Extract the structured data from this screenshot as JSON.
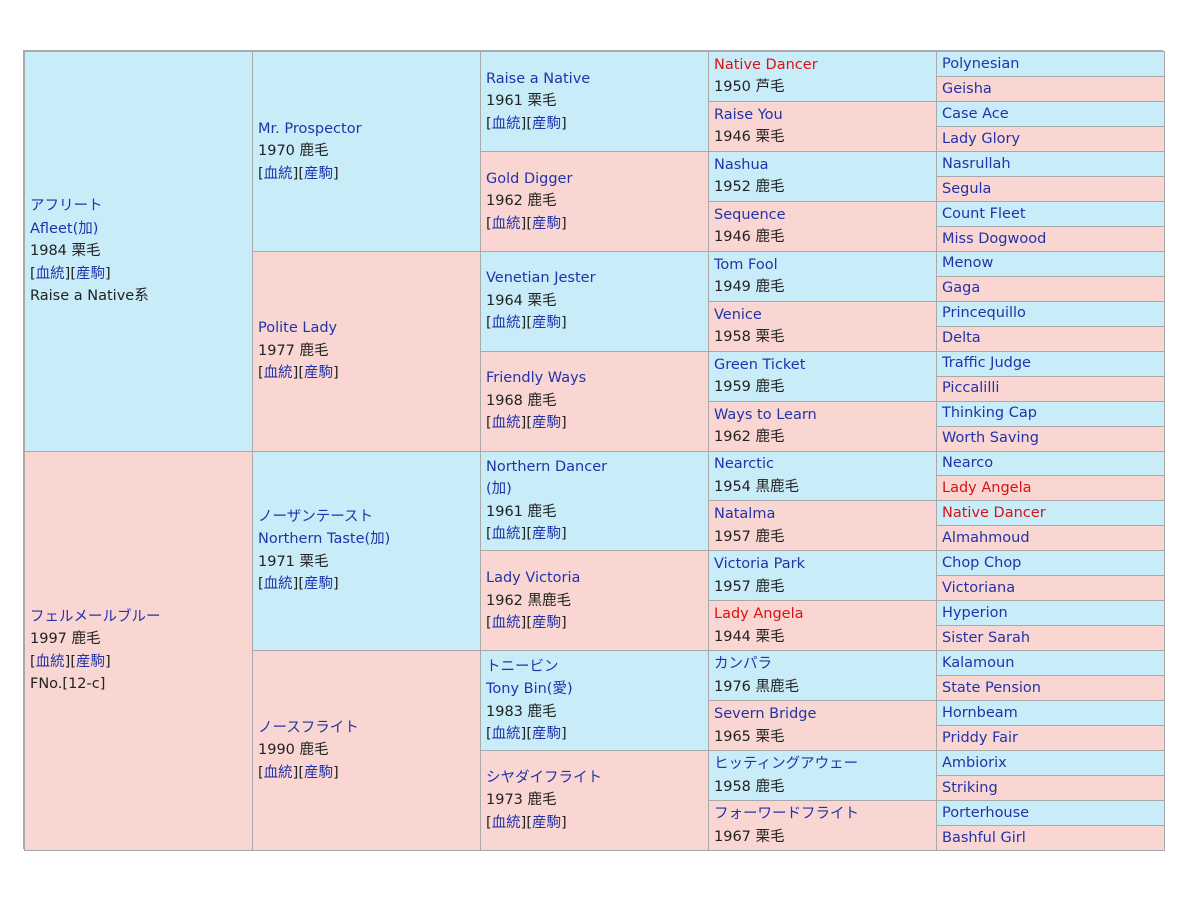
{
  "colors": {
    "male_bg": "#c9ecf9",
    "female_bg": "#f9d6d2",
    "link": "#2233aa",
    "highlight": "#dd1111"
  },
  "link_labels": {
    "pedigree": "血統",
    "offspring": "産駒"
  },
  "columns": [
    [
      {
        "sex": "m",
        "lines": [
          "アフリート",
          "Afleet(加)"
        ],
        "info": "1984 栗毛",
        "links": true,
        "extra": "Raise a Native系"
      },
      {
        "sex": "f",
        "lines": [
          "フェルメールブルー"
        ],
        "info": "1997 鹿毛",
        "links": true,
        "extra": "FNo.[12-c]"
      }
    ],
    [
      {
        "sex": "m",
        "lines": [
          "Mr. Prospector"
        ],
        "info": "1970 鹿毛",
        "links": true
      },
      {
        "sex": "f",
        "lines": [
          "Polite Lady"
        ],
        "info": "1977 鹿毛",
        "links": true
      },
      {
        "sex": "m",
        "lines": [
          "ノーザンテースト",
          "Northern Taste(加)"
        ],
        "info": "1971 栗毛",
        "links": true
      },
      {
        "sex": "f",
        "lines": [
          "ノースフライト"
        ],
        "info": "1990 鹿毛",
        "links": true
      }
    ],
    [
      {
        "sex": "m",
        "lines": [
          "Raise a Native"
        ],
        "info": "1961 栗毛",
        "links": true
      },
      {
        "sex": "f",
        "lines": [
          "Gold Digger"
        ],
        "info": "1962 鹿毛",
        "links": true
      },
      {
        "sex": "m",
        "lines": [
          "Venetian Jester"
        ],
        "info": "1964 栗毛",
        "links": true
      },
      {
        "sex": "f",
        "lines": [
          "Friendly Ways"
        ],
        "info": "1968 鹿毛",
        "links": true
      },
      {
        "sex": "m",
        "lines": [
          "Northern Dancer",
          "(加)"
        ],
        "info": "1961 鹿毛",
        "links": true
      },
      {
        "sex": "f",
        "lines": [
          "Lady Victoria"
        ],
        "info": "1962 黒鹿毛",
        "links": true
      },
      {
        "sex": "m",
        "lines": [
          "トニービン",
          "Tony Bin(愛)"
        ],
        "info": "1983 鹿毛",
        "links": true
      },
      {
        "sex": "f",
        "lines": [
          "シヤダイフライト"
        ],
        "info": "1973 鹿毛",
        "links": true
      }
    ],
    [
      {
        "sex": "m",
        "lines": [
          "Native Dancer"
        ],
        "info": "1950 芦毛",
        "hi": true
      },
      {
        "sex": "f",
        "lines": [
          "Raise You"
        ],
        "info": "1946 栗毛"
      },
      {
        "sex": "m",
        "lines": [
          "Nashua"
        ],
        "info": "1952 鹿毛"
      },
      {
        "sex": "f",
        "lines": [
          "Sequence"
        ],
        "info": "1946 鹿毛"
      },
      {
        "sex": "m",
        "lines": [
          "Tom Fool"
        ],
        "info": "1949 鹿毛"
      },
      {
        "sex": "f",
        "lines": [
          "Venice"
        ],
        "info": "1958 栗毛"
      },
      {
        "sex": "m",
        "lines": [
          "Green Ticket"
        ],
        "info": "1959 鹿毛"
      },
      {
        "sex": "f",
        "lines": [
          "Ways to Learn"
        ],
        "info": "1962 鹿毛"
      },
      {
        "sex": "m",
        "lines": [
          "Nearctic"
        ],
        "info": "1954 黒鹿毛"
      },
      {
        "sex": "f",
        "lines": [
          "Natalma"
        ],
        "info": "1957 鹿毛"
      },
      {
        "sex": "m",
        "lines": [
          "Victoria Park"
        ],
        "info": "1957 鹿毛"
      },
      {
        "sex": "f",
        "lines": [
          "Lady Angela"
        ],
        "info": "1944 栗毛",
        "hi": true
      },
      {
        "sex": "m",
        "lines": [
          "カンパラ"
        ],
        "info": "1976 黒鹿毛"
      },
      {
        "sex": "f",
        "lines": [
          "Severn Bridge"
        ],
        "info": "1965 栗毛"
      },
      {
        "sex": "m",
        "lines": [
          "ヒッティングアウェー"
        ],
        "info": "1958 鹿毛"
      },
      {
        "sex": "f",
        "lines": [
          "フォーワードフライト"
        ],
        "info": "1967 栗毛"
      }
    ],
    [
      {
        "sex": "m",
        "lines": [
          "Polynesian"
        ]
      },
      {
        "sex": "f",
        "lines": [
          "Geisha"
        ]
      },
      {
        "sex": "m",
        "lines": [
          "Case Ace"
        ]
      },
      {
        "sex": "f",
        "lines": [
          "Lady Glory"
        ]
      },
      {
        "sex": "m",
        "lines": [
          "Nasrullah"
        ]
      },
      {
        "sex": "f",
        "lines": [
          "Segula"
        ]
      },
      {
        "sex": "m",
        "lines": [
          "Count Fleet"
        ]
      },
      {
        "sex": "f",
        "lines": [
          "Miss Dogwood"
        ]
      },
      {
        "sex": "m",
        "lines": [
          "Menow"
        ]
      },
      {
        "sex": "f",
        "lines": [
          "Gaga"
        ]
      },
      {
        "sex": "m",
        "lines": [
          "Princequillo"
        ]
      },
      {
        "sex": "f",
        "lines": [
          "Delta"
        ]
      },
      {
        "sex": "m",
        "lines": [
          "Traffic Judge"
        ]
      },
      {
        "sex": "f",
        "lines": [
          "Piccalilli"
        ]
      },
      {
        "sex": "m",
        "lines": [
          "Thinking Cap"
        ]
      },
      {
        "sex": "f",
        "lines": [
          "Worth Saving"
        ]
      },
      {
        "sex": "m",
        "lines": [
          "Nearco"
        ]
      },
      {
        "sex": "f",
        "lines": [
          "Lady Angela"
        ],
        "hi": true
      },
      {
        "sex": "m",
        "lines": [
          "Native Dancer"
        ],
        "hi": true
      },
      {
        "sex": "f",
        "lines": [
          "Almahmoud"
        ]
      },
      {
        "sex": "m",
        "lines": [
          "Chop Chop"
        ]
      },
      {
        "sex": "f",
        "lines": [
          "Victoriana"
        ]
      },
      {
        "sex": "m",
        "lines": [
          "Hyperion"
        ]
      },
      {
        "sex": "f",
        "lines": [
          "Sister Sarah"
        ]
      },
      {
        "sex": "m",
        "lines": [
          "Kalamoun"
        ]
      },
      {
        "sex": "f",
        "lines": [
          "State Pension"
        ]
      },
      {
        "sex": "m",
        "lines": [
          "Hornbeam"
        ]
      },
      {
        "sex": "f",
        "lines": [
          "Priddy Fair"
        ]
      },
      {
        "sex": "m",
        "lines": [
          "Ambiorix"
        ]
      },
      {
        "sex": "f",
        "lines": [
          "Striking"
        ]
      },
      {
        "sex": "m",
        "lines": [
          "Porterhouse"
        ]
      },
      {
        "sex": "f",
        "lines": [
          "Bashful Girl"
        ]
      }
    ]
  ]
}
